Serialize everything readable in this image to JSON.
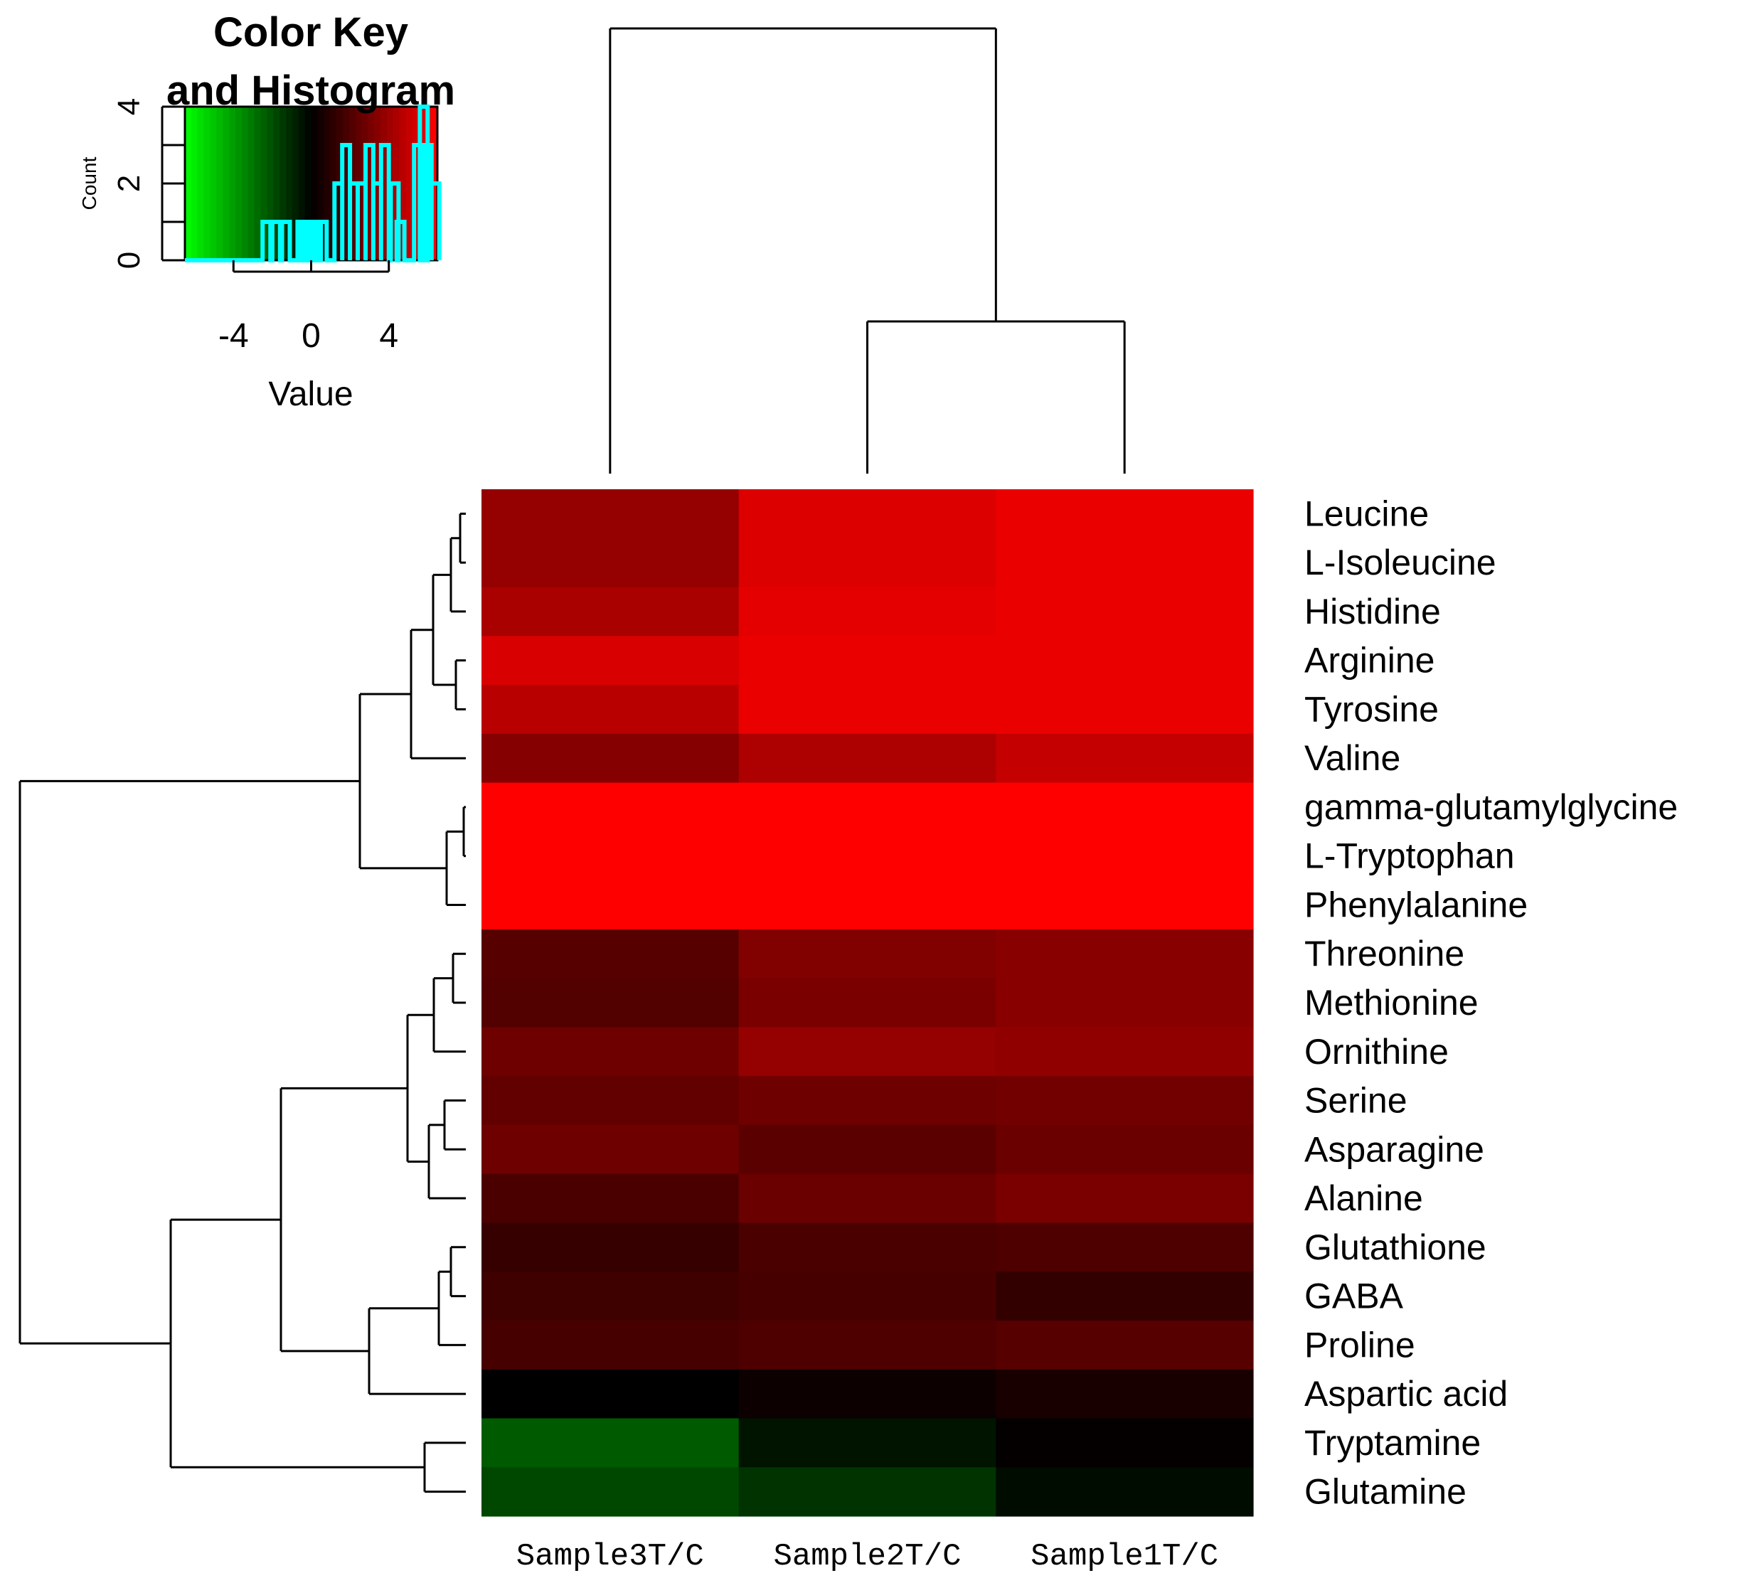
{
  "chart_data": [
    {
      "type": "heatmap",
      "columns": [
        "Sample3T/C",
        "Sample2T/C",
        "Sample1T/C"
      ],
      "rows": [
        "Leucine",
        "L-Isoleucine",
        "Histidine",
        "Arginine",
        "Tyrosine",
        "Valine",
        "gamma-glutamylglycine",
        "L-Tryptophan",
        "Phenylalanine",
        "Threonine",
        "Methionine",
        "Ornithine",
        "Serine",
        "Asparagine",
        "Alanine",
        "Glutathione",
        "GABA",
        "Proline",
        "Aspartic acid",
        "Tryptamine",
        "Glutamine"
      ],
      "values": [
        [
          3.8,
          5.6,
          6.0
        ],
        [
          3.8,
          5.6,
          6.0
        ],
        [
          4.3,
          5.8,
          6.0
        ],
        [
          5.5,
          6.0,
          6.0
        ],
        [
          4.7,
          6.0,
          6.0
        ],
        [
          3.4,
          4.4,
          5.0
        ],
        [
          6.5,
          6.5,
          6.5
        ],
        [
          6.5,
          6.5,
          6.5
        ],
        [
          6.5,
          6.5,
          6.5
        ],
        [
          2.2,
          3.3,
          3.5
        ],
        [
          2.1,
          3.1,
          3.5
        ],
        [
          2.8,
          3.8,
          3.7
        ],
        [
          2.5,
          2.8,
          2.9
        ],
        [
          2.8,
          2.3,
          2.7
        ],
        [
          1.9,
          2.7,
          3.1
        ],
        [
          1.4,
          1.9,
          2.0
        ],
        [
          1.6,
          1.8,
          1.3
        ],
        [
          1.8,
          2.0,
          2.2
        ],
        [
          0.0,
          0.3,
          0.6
        ],
        [
          -2.3,
          -0.5,
          0.1
        ],
        [
          -1.8,
          -1.3,
          -0.3
        ]
      ],
      "row_dendrogram": "((((((Leucine,L-Isoleucine),Histidine),(Arginine,Tyrosine)),Valine),((gamma-glutamylglycine,L-Tryptophan),Phenylalanine)),((((((Threonine,Methionine),Ornithine),((Serine,Asparagine),Alanine)),(((Glutathione,GABA),Proline),Aspartic acid))),(Tryptamine,Glutamine)))",
      "column_dendrogram": "(Sample3T/C,(Sample2T/C,Sample1T/C))",
      "color_scale": {
        "low": "#00ff00",
        "mid": "#000000",
        "high": "#ff0000",
        "range": [
          -6.5,
          6.5
        ]
      }
    },
    {
      "type": "bar",
      "title": "Color Key\nand Histogram",
      "xlabel": "Value",
      "ylabel": "Count",
      "xticks": [
        "-4",
        "0",
        "4"
      ],
      "yticks": [
        "0",
        "2",
        "4"
      ],
      "xlim": [
        -6.5,
        6.5
      ],
      "ylim": [
        0,
        4
      ],
      "bin_width": 0.4,
      "bins": [
        {
          "x": -2.3,
          "count": 1
        },
        {
          "x": -1.8,
          "count": 1
        },
        {
          "x": -1.3,
          "count": 1
        },
        {
          "x": -0.5,
          "count": 1
        },
        {
          "x": -0.3,
          "count": 1
        },
        {
          "x": 0.0,
          "count": 1
        },
        {
          "x": 0.1,
          "count": 1
        },
        {
          "x": 0.3,
          "count": 1
        },
        {
          "x": 0.6,
          "count": 1
        },
        {
          "x": 1.4,
          "count": 2
        },
        {
          "x": 1.8,
          "count": 3
        },
        {
          "x": 2.2,
          "count": 2
        },
        {
          "x": 2.6,
          "count": 2
        },
        {
          "x": 3.0,
          "count": 3
        },
        {
          "x": 3.4,
          "count": 2
        },
        {
          "x": 3.8,
          "count": 3
        },
        {
          "x": 4.3,
          "count": 2
        },
        {
          "x": 4.6,
          "count": 1
        },
        {
          "x": 5.5,
          "count": 3
        },
        {
          "x": 5.8,
          "count": 4
        },
        {
          "x": 6.0,
          "count": 3
        },
        {
          "x": 6.4,
          "count": 2
        }
      ],
      "histogram_color": "#00ffff"
    }
  ]
}
